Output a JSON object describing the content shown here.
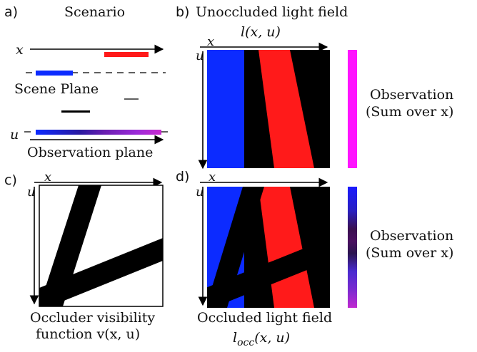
{
  "panels": {
    "a": {
      "tag": "a)",
      "title": "Scenario",
      "x_axis": "x",
      "u_axis": "u",
      "scene_plane": "Scene Plane",
      "observation_plane": "Observation plane"
    },
    "b": {
      "tag": "b)",
      "title": "Unoccluded light field",
      "formula": "l(x, u)",
      "x_axis": "x",
      "u_axis": "u",
      "obs_label_1": "Observation",
      "obs_label_2": "(Sum over x)"
    },
    "c": {
      "tag": "c)",
      "x_axis": "x",
      "u_axis": "u",
      "caption_1": "Occluder visibility",
      "caption_2": "function v(x, u)"
    },
    "d": {
      "tag": "d)",
      "x_axis": "x",
      "u_axis": "u",
      "caption_1": "Occluded light field",
      "caption_2": "l",
      "caption_2_sub": "occ",
      "caption_2_tail": "(x, u)",
      "obs_label_1": "Observation",
      "obs_label_2": "(Sum over x)"
    }
  },
  "colors": {
    "blue": "#0c2bff",
    "red": "#ff1a1a",
    "black": "#000000",
    "magenta": "#ff14ff",
    "purple": "#8a1fd0"
  }
}
